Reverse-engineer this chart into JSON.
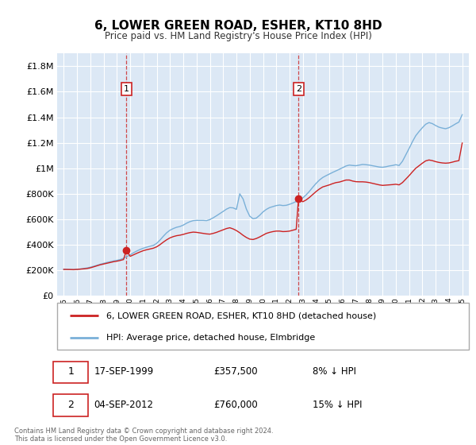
{
  "title": "6, LOWER GREEN ROAD, ESHER, KT10 8HD",
  "subtitle": "Price paid vs. HM Land Registry's House Price Index (HPI)",
  "ylabel_ticks": [
    "£0",
    "£200K",
    "£400K",
    "£600K",
    "£800K",
    "£1M",
    "£1.2M",
    "£1.4M",
    "£1.6M",
    "£1.8M"
  ],
  "ytick_values": [
    0,
    200000,
    400000,
    600000,
    800000,
    1000000,
    1200000,
    1400000,
    1600000,
    1800000
  ],
  "ylim": [
    0,
    1900000
  ],
  "xlim_start": 1994.5,
  "xlim_end": 2025.5,
  "background_color": "#dce8f5",
  "grid_color": "#ffffff",
  "hpi_color": "#7ab0d8",
  "price_color": "#cc2222",
  "sale1_price": 357500,
  "sale1_year": 1999.71,
  "sale2_price": 760000,
  "sale2_year": 2012.67,
  "legend_label1": "6, LOWER GREEN ROAD, ESHER, KT10 8HD (detached house)",
  "legend_label2": "HPI: Average price, detached house, Elmbridge",
  "footnote": "Contains HM Land Registry data © Crown copyright and database right 2024.\nThis data is licensed under the Open Government Licence v3.0.",
  "hpi_data": [
    [
      1995.0,
      208000
    ],
    [
      1995.25,
      207000
    ],
    [
      1995.5,
      206000
    ],
    [
      1995.75,
      205000
    ],
    [
      1996.0,
      208000
    ],
    [
      1996.25,
      211000
    ],
    [
      1996.5,
      215000
    ],
    [
      1996.75,
      219000
    ],
    [
      1997.0,
      225000
    ],
    [
      1997.25,
      232000
    ],
    [
      1997.5,
      240000
    ],
    [
      1997.75,
      248000
    ],
    [
      1998.0,
      255000
    ],
    [
      1998.25,
      262000
    ],
    [
      1998.5,
      268000
    ],
    [
      1998.75,
      274000
    ],
    [
      1999.0,
      279000
    ],
    [
      1999.25,
      285000
    ],
    [
      1999.5,
      295000
    ],
    [
      1999.75,
      308000
    ],
    [
      2000.0,
      322000
    ],
    [
      2000.25,
      338000
    ],
    [
      2000.5,
      352000
    ],
    [
      2000.75,
      364000
    ],
    [
      2001.0,
      374000
    ],
    [
      2001.25,
      382000
    ],
    [
      2001.5,
      390000
    ],
    [
      2001.75,
      396000
    ],
    [
      2002.0,
      412000
    ],
    [
      2002.25,
      438000
    ],
    [
      2002.5,
      468000
    ],
    [
      2002.75,
      495000
    ],
    [
      2003.0,
      515000
    ],
    [
      2003.25,
      528000
    ],
    [
      2003.5,
      538000
    ],
    [
      2003.75,
      544000
    ],
    [
      2004.0,
      555000
    ],
    [
      2004.25,
      570000
    ],
    [
      2004.5,
      582000
    ],
    [
      2004.75,
      590000
    ],
    [
      2005.0,
      592000
    ],
    [
      2005.25,
      592000
    ],
    [
      2005.5,
      592000
    ],
    [
      2005.75,
      590000
    ],
    [
      2006.0,
      598000
    ],
    [
      2006.25,
      612000
    ],
    [
      2006.5,
      628000
    ],
    [
      2006.75,
      645000
    ],
    [
      2007.0,
      662000
    ],
    [
      2007.25,
      680000
    ],
    [
      2007.5,
      692000
    ],
    [
      2007.75,
      690000
    ],
    [
      2008.0,
      678000
    ],
    [
      2008.25,
      800000
    ],
    [
      2008.5,
      760000
    ],
    [
      2008.75,
      680000
    ],
    [
      2009.0,
      625000
    ],
    [
      2009.25,
      605000
    ],
    [
      2009.5,
      610000
    ],
    [
      2009.75,
      632000
    ],
    [
      2010.0,
      658000
    ],
    [
      2010.25,
      678000
    ],
    [
      2010.5,
      692000
    ],
    [
      2010.75,
      700000
    ],
    [
      2011.0,
      708000
    ],
    [
      2011.25,
      712000
    ],
    [
      2011.5,
      708000
    ],
    [
      2011.75,
      710000
    ],
    [
      2012.0,
      718000
    ],
    [
      2012.25,
      728000
    ],
    [
      2012.5,
      740000
    ],
    [
      2012.75,
      752000
    ],
    [
      2013.0,
      768000
    ],
    [
      2013.25,
      792000
    ],
    [
      2013.5,
      820000
    ],
    [
      2013.75,
      852000
    ],
    [
      2014.0,
      882000
    ],
    [
      2014.25,
      908000
    ],
    [
      2014.5,
      928000
    ],
    [
      2014.75,
      942000
    ],
    [
      2015.0,
      955000
    ],
    [
      2015.25,
      968000
    ],
    [
      2015.5,
      980000
    ],
    [
      2015.75,
      992000
    ],
    [
      2016.0,
      1005000
    ],
    [
      2016.25,
      1018000
    ],
    [
      2016.5,
      1025000
    ],
    [
      2016.75,
      1022000
    ],
    [
      2017.0,
      1020000
    ],
    [
      2017.25,
      1025000
    ],
    [
      2017.5,
      1030000
    ],
    [
      2017.75,
      1028000
    ],
    [
      2018.0,
      1025000
    ],
    [
      2018.25,
      1020000
    ],
    [
      2018.5,
      1015000
    ],
    [
      2018.75,
      1010000
    ],
    [
      2019.0,
      1008000
    ],
    [
      2019.25,
      1012000
    ],
    [
      2019.5,
      1018000
    ],
    [
      2019.75,
      1022000
    ],
    [
      2020.0,
      1028000
    ],
    [
      2020.25,
      1022000
    ],
    [
      2020.5,
      1055000
    ],
    [
      2020.75,
      1105000
    ],
    [
      2021.0,
      1155000
    ],
    [
      2021.25,
      1208000
    ],
    [
      2021.5,
      1255000
    ],
    [
      2021.75,
      1288000
    ],
    [
      2022.0,
      1318000
    ],
    [
      2022.25,
      1345000
    ],
    [
      2022.5,
      1358000
    ],
    [
      2022.75,
      1350000
    ],
    [
      2023.0,
      1335000
    ],
    [
      2023.25,
      1322000
    ],
    [
      2023.5,
      1315000
    ],
    [
      2023.75,
      1310000
    ],
    [
      2024.0,
      1318000
    ],
    [
      2024.25,
      1332000
    ],
    [
      2024.5,
      1348000
    ],
    [
      2024.75,
      1362000
    ],
    [
      2025.0,
      1420000
    ]
  ],
  "price_data": [
    [
      1995.0,
      208000
    ],
    [
      1995.25,
      207500
    ],
    [
      1995.5,
      207000
    ],
    [
      1995.75,
      206500
    ],
    [
      1996.0,
      208000
    ],
    [
      1996.25,
      210000
    ],
    [
      1996.5,
      212000
    ],
    [
      1996.75,
      215000
    ],
    [
      1997.0,
      220000
    ],
    [
      1997.25,
      228000
    ],
    [
      1997.5,
      236000
    ],
    [
      1997.75,
      244000
    ],
    [
      1998.0,
      250000
    ],
    [
      1998.25,
      256000
    ],
    [
      1998.5,
      262000
    ],
    [
      1998.75,
      268000
    ],
    [
      1999.0,
      272000
    ],
    [
      1999.25,
      278000
    ],
    [
      1999.5,
      285000
    ],
    [
      1999.71,
      357500
    ],
    [
      2000.0,
      310000
    ],
    [
      2000.25,
      322000
    ],
    [
      2000.5,
      334000
    ],
    [
      2000.75,
      345000
    ],
    [
      2001.0,
      355000
    ],
    [
      2001.25,
      362000
    ],
    [
      2001.5,
      368000
    ],
    [
      2001.75,
      374000
    ],
    [
      2002.0,
      385000
    ],
    [
      2002.25,
      402000
    ],
    [
      2002.5,
      422000
    ],
    [
      2002.75,
      440000
    ],
    [
      2003.0,
      455000
    ],
    [
      2003.25,
      465000
    ],
    [
      2003.5,
      472000
    ],
    [
      2003.75,
      476000
    ],
    [
      2004.0,
      482000
    ],
    [
      2004.25,
      490000
    ],
    [
      2004.5,
      496000
    ],
    [
      2004.75,
      500000
    ],
    [
      2005.0,
      498000
    ],
    [
      2005.25,
      494000
    ],
    [
      2005.5,
      490000
    ],
    [
      2005.75,
      486000
    ],
    [
      2006.0,
      484000
    ],
    [
      2006.25,
      490000
    ],
    [
      2006.5,
      498000
    ],
    [
      2006.75,
      508000
    ],
    [
      2007.0,
      518000
    ],
    [
      2007.25,
      528000
    ],
    [
      2007.5,
      534000
    ],
    [
      2007.75,
      525000
    ],
    [
      2008.0,
      512000
    ],
    [
      2008.25,
      495000
    ],
    [
      2008.5,
      475000
    ],
    [
      2008.75,
      458000
    ],
    [
      2009.0,
      445000
    ],
    [
      2009.25,
      442000
    ],
    [
      2009.5,
      450000
    ],
    [
      2009.75,
      462000
    ],
    [
      2010.0,
      476000
    ],
    [
      2010.25,
      490000
    ],
    [
      2010.5,
      498000
    ],
    [
      2010.75,
      504000
    ],
    [
      2011.0,
      508000
    ],
    [
      2011.25,
      508000
    ],
    [
      2011.5,
      504000
    ],
    [
      2011.75,
      505000
    ],
    [
      2012.0,
      508000
    ],
    [
      2012.25,
      515000
    ],
    [
      2012.5,
      522000
    ],
    [
      2012.67,
      760000
    ],
    [
      2013.0,
      738000
    ],
    [
      2013.25,
      752000
    ],
    [
      2013.5,
      772000
    ],
    [
      2013.75,
      795000
    ],
    [
      2014.0,
      818000
    ],
    [
      2014.25,
      838000
    ],
    [
      2014.5,
      854000
    ],
    [
      2014.75,
      862000
    ],
    [
      2015.0,
      870000
    ],
    [
      2015.25,
      880000
    ],
    [
      2015.5,
      888000
    ],
    [
      2015.75,
      892000
    ],
    [
      2016.0,
      900000
    ],
    [
      2016.25,
      908000
    ],
    [
      2016.5,
      908000
    ],
    [
      2016.75,
      900000
    ],
    [
      2017.0,
      895000
    ],
    [
      2017.25,
      894000
    ],
    [
      2017.5,
      894000
    ],
    [
      2017.75,
      892000
    ],
    [
      2018.0,
      888000
    ],
    [
      2018.25,
      882000
    ],
    [
      2018.5,
      876000
    ],
    [
      2018.75,
      870000
    ],
    [
      2019.0,
      866000
    ],
    [
      2019.25,
      868000
    ],
    [
      2019.5,
      870000
    ],
    [
      2019.75,
      872000
    ],
    [
      2020.0,
      875000
    ],
    [
      2020.25,
      870000
    ],
    [
      2020.5,
      888000
    ],
    [
      2020.75,
      915000
    ],
    [
      2021.0,
      942000
    ],
    [
      2021.25,
      972000
    ],
    [
      2021.5,
      1000000
    ],
    [
      2021.75,
      1020000
    ],
    [
      2022.0,
      1040000
    ],
    [
      2022.25,
      1058000
    ],
    [
      2022.5,
      1065000
    ],
    [
      2022.75,
      1060000
    ],
    [
      2023.0,
      1052000
    ],
    [
      2023.25,
      1046000
    ],
    [
      2023.5,
      1042000
    ],
    [
      2023.75,
      1040000
    ],
    [
      2024.0,
      1042000
    ],
    [
      2024.25,
      1048000
    ],
    [
      2024.5,
      1055000
    ],
    [
      2024.75,
      1060000
    ],
    [
      2025.0,
      1198000
    ]
  ]
}
